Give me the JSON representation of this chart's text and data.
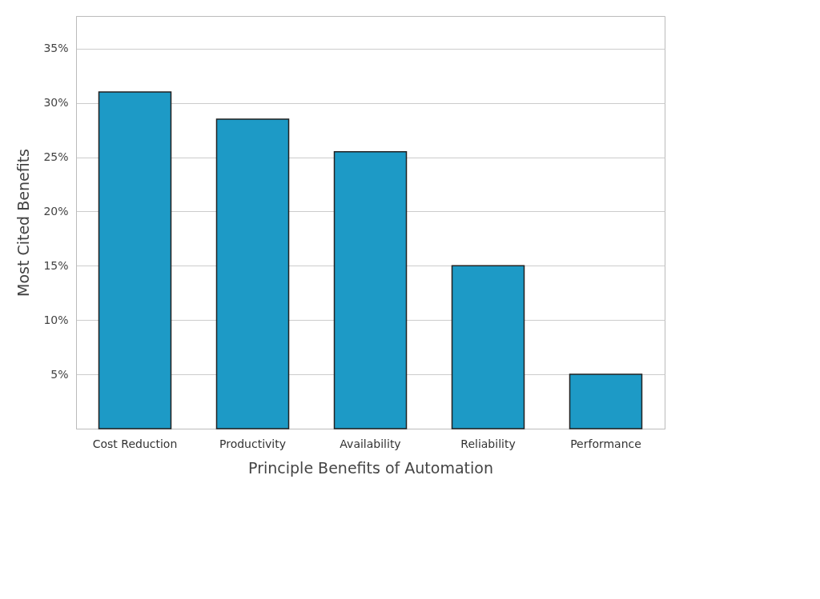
{
  "chart_data": {
    "type": "bar",
    "xlabel": "Principle Benefits of Automation",
    "ylabel": "Most Cited Benefits",
    "categories": [
      "Cost Reduction",
      "Productivity",
      "Availability",
      "Reliability",
      "Performance"
    ],
    "values": [
      31,
      28.5,
      25.5,
      15,
      5
    ],
    "color": "#1d9ac6",
    "ylim": [
      0,
      38
    ],
    "yticks": [
      {
        "value": 5,
        "label": "5%"
      },
      {
        "value": 10,
        "label": "10%"
      },
      {
        "value": 15,
        "label": "15%"
      },
      {
        "value": 20,
        "label": "20%"
      },
      {
        "value": 25,
        "label": "25%"
      },
      {
        "value": 30,
        "label": "30%"
      },
      {
        "value": 35,
        "label": "35%"
      }
    ],
    "grid": "y"
  }
}
